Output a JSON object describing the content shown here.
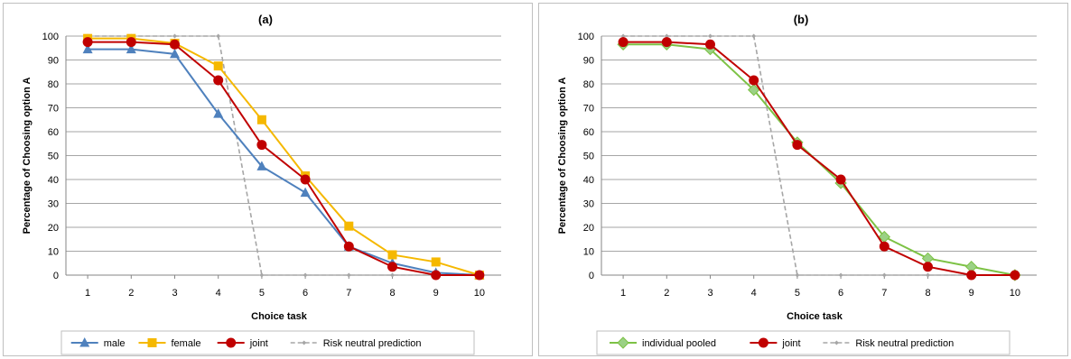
{
  "chart_data": [
    {
      "type": "line",
      "title": "(a)",
      "xlabel": "Choice task",
      "ylabel": "Percentage of Choosing option A",
      "x": [
        1,
        2,
        3,
        4,
        5,
        6,
        7,
        8,
        9,
        10
      ],
      "xlim": [
        1,
        10
      ],
      "ylim": [
        0,
        100
      ],
      "yticks": [
        0,
        10,
        20,
        30,
        40,
        50,
        60,
        70,
        80,
        90,
        100
      ],
      "grid": true,
      "legend_position": "bottom",
      "series": [
        {
          "name": "male",
          "color": "#4f81bd",
          "marker": "triangle",
          "dash": false,
          "values": [
            94.5,
            94.5,
            92.5,
            67.5,
            45.5,
            34.5,
            12,
            5,
            1,
            0
          ]
        },
        {
          "name": "female",
          "color": "#f5b800",
          "marker": "square",
          "dash": false,
          "values": [
            99,
            99,
            97,
            87.5,
            65,
            41.5,
            20.5,
            8.5,
            5.5,
            0
          ]
        },
        {
          "name": "joint",
          "color": "#c00000",
          "marker": "circle",
          "dash": false,
          "values": [
            97.5,
            97.5,
            96.5,
            81.5,
            54.5,
            40,
            12,
            3.5,
            0,
            0
          ]
        },
        {
          "name": "Risk neutral prediction",
          "color": "#a6a6a6",
          "marker": "diamond-small",
          "dash": true,
          "values": [
            100,
            100,
            100,
            100,
            0,
            0,
            0,
            0,
            0,
            0
          ]
        }
      ]
    },
    {
      "type": "line",
      "title": "(b)",
      "xlabel": "Choice task",
      "ylabel": "Percentage of Choosing option A",
      "x": [
        1,
        2,
        3,
        4,
        5,
        6,
        7,
        8,
        9,
        10
      ],
      "xlim": [
        1,
        10
      ],
      "ylim": [
        0,
        100
      ],
      "yticks": [
        0,
        10,
        20,
        30,
        40,
        50,
        60,
        70,
        80,
        90,
        100
      ],
      "grid": true,
      "legend_position": "bottom",
      "series": [
        {
          "name": "individual pooled",
          "color": "#7dc245",
          "marker": "diamond",
          "dash": false,
          "values": [
            96.5,
            96.5,
            94.5,
            77.5,
            55.5,
            38.5,
            16,
            7,
            3.5,
            0
          ]
        },
        {
          "name": "joint",
          "color": "#c00000",
          "marker": "circle",
          "dash": false,
          "values": [
            97.5,
            97.5,
            96.5,
            81.5,
            54.5,
            40,
            12,
            3.5,
            0,
            0
          ]
        },
        {
          "name": "Risk neutral prediction",
          "color": "#a6a6a6",
          "marker": "diamond-small",
          "dash": true,
          "values": [
            100,
            100,
            100,
            100,
            0,
            0,
            0,
            0,
            0,
            0
          ]
        }
      ]
    }
  ]
}
